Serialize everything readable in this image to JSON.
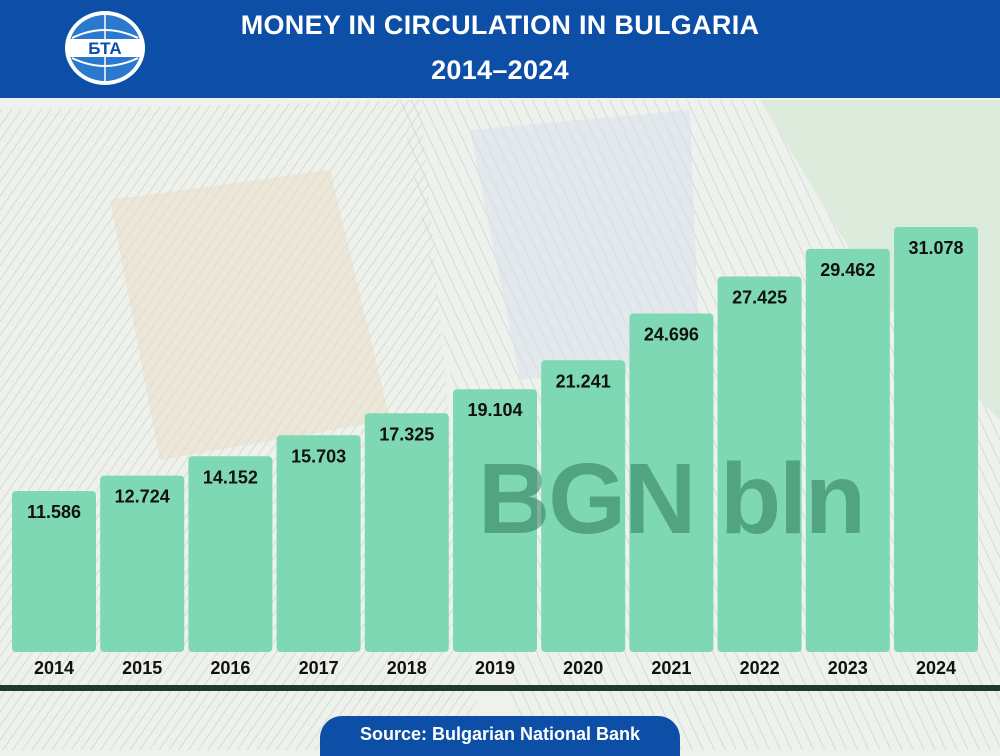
{
  "header": {
    "logo_text": "БТА",
    "title": "MONEY IN CIRCULATION IN BULGARIA",
    "subtitle": "2014–2024"
  },
  "unit_label": "BGN bln",
  "source": "Source: Bulgarian National Bank",
  "colors": {
    "header_bg": "#0d4ea6",
    "bar_fill": "#7dd8b3",
    "label_text": "#111111",
    "rule": "#1f3a2c"
  },
  "chart_data": {
    "type": "bar",
    "categories": [
      "2014",
      "2015",
      "2016",
      "2017",
      "2018",
      "2019",
      "2020",
      "2021",
      "2022",
      "2023",
      "2024"
    ],
    "values": [
      11.586,
      12.724,
      14.152,
      15.703,
      17.325,
      19.104,
      21.241,
      24.696,
      27.425,
      29.462,
      31.078
    ],
    "value_labels": [
      "11.586",
      "12.724",
      "14.152",
      "15.703",
      "17.325",
      "19.104",
      "21.241",
      "24.696",
      "27.425",
      "29.462",
      "31.078"
    ],
    "title": "MONEY IN CIRCULATION IN BULGARIA",
    "subtitle": "2014–2024",
    "xlabel": "",
    "ylabel": "",
    "unit": "BGN bln",
    "ylim": [
      0,
      31.078
    ],
    "grid": false,
    "legend": "none"
  }
}
